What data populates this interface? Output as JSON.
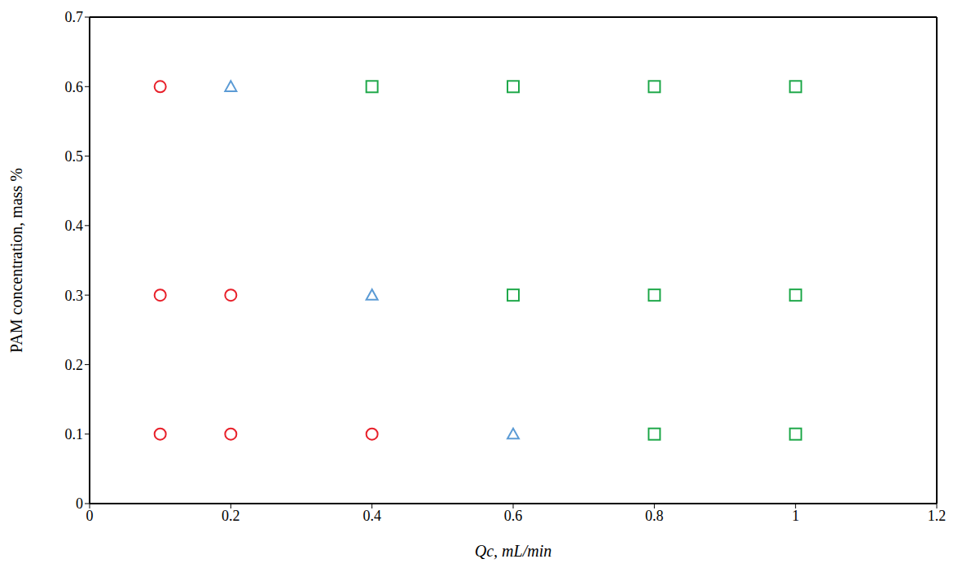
{
  "chart_data": {
    "type": "scatter",
    "x_label": "Qc, mL/min",
    "y_label": "PAM concentration, mass %",
    "xlim": [
      0,
      1.2
    ],
    "xticks": [
      0,
      0.2,
      0.4,
      0.6,
      0.8,
      1,
      1.2
    ],
    "ylim": [
      0,
      0.7
    ],
    "yticks": [
      0,
      0.1,
      0.2,
      0.3,
      0.4,
      0.5,
      0.6,
      0.7
    ],
    "grid": false,
    "series": [
      {
        "color": "#e8202a",
        "marker": "circle",
        "x": [
          0.1,
          0.1,
          0.2,
          0.1,
          0.2,
          0.4
        ],
        "y": [
          0.6,
          0.3,
          0.3,
          0.1,
          0.1,
          0.1
        ]
      },
      {
        "color": "#5b9bd5",
        "marker": "triangle",
        "x": [
          0.2,
          0.4,
          0.6
        ],
        "y": [
          0.6,
          0.3,
          0.1
        ]
      },
      {
        "color": "#1fa84a",
        "marker": "square",
        "x": [
          0.4,
          0.6,
          0.8,
          1,
          0.6,
          0.8,
          1,
          0.8,
          1
        ],
        "y": [
          0.6,
          0.6,
          0.6,
          0.6,
          0.3,
          0.3,
          0.3,
          0.1,
          0.1
        ]
      }
    ]
  }
}
